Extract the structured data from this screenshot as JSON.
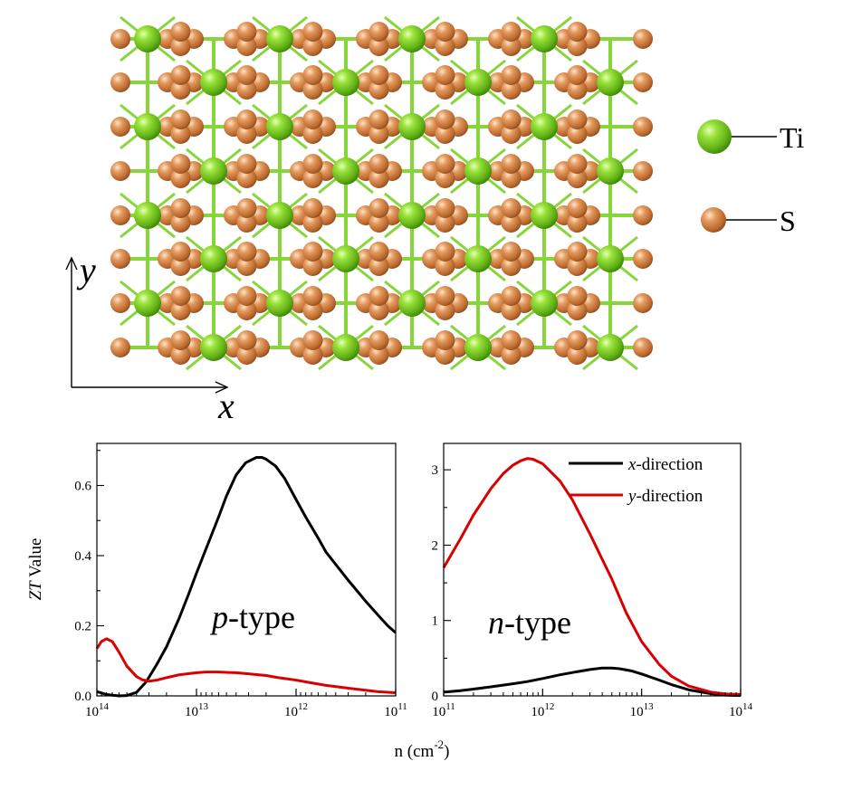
{
  "structure": {
    "species": [
      {
        "symbol": "Ti",
        "color": "#7fd321"
      },
      {
        "symbol": "S",
        "color": "#d9874e"
      }
    ],
    "bond_color": "#86d63a",
    "axes": {
      "horizontal": "x",
      "vertical": "y"
    }
  },
  "chart_data": [
    {
      "type": "line",
      "panel": "p-type",
      "panel_label": {
        "italic": "p",
        "rest": "-type"
      },
      "xscale": "log",
      "xreversed": true,
      "xlim": [
        100000000000000.0,
        100000000000.0
      ],
      "ylim": [
        0,
        0.72
      ],
      "ylabel": {
        "italic": "ZT",
        "rest": " Value"
      },
      "xticks": [
        {
          "value": 100000000000000.0,
          "base": "10",
          "exp": "14"
        },
        {
          "value": 10000000000000.0,
          "base": "10",
          "exp": "13"
        },
        {
          "value": 1000000000000.0,
          "base": "10",
          "exp": "12"
        },
        {
          "value": 100000000000.0,
          "base": "10",
          "exp": "11"
        }
      ],
      "yticks": [
        {
          "value": 0,
          "label": "0.0"
        },
        {
          "value": 0.2,
          "label": "0.2"
        },
        {
          "value": 0.4,
          "label": "0.4"
        },
        {
          "value": 0.6,
          "label": "0.6"
        }
      ],
      "series": [
        {
          "key": "x",
          "color": "#000000",
          "x": [
            100000000000000.0,
            80000000000000.0,
            60000000000000.0,
            50000000000000.0,
            40000000000000.0,
            32000000000000.0,
            25000000000000.0,
            20000000000000.0,
            15000000000000.0,
            12000000000000.0,
            10000000000000.0,
            8000000000000.0,
            6000000000000.0,
            5000000000000.0,
            4000000000000.0,
            3200000000000.0,
            2500000000000.0,
            2200000000000.0,
            2000000000000.0,
            1600000000000.0,
            1300000000000.0,
            1000000000000.0,
            800000000000.0,
            600000000000.0,
            500000000000.0,
            400000000000.0,
            300000000000.0,
            200000000000.0,
            150000000000.0,
            120000000000.0,
            100000000000.0
          ],
          "y": [
            0.012,
            0.004,
            0.0,
            0.001,
            0.01,
            0.04,
            0.09,
            0.14,
            0.22,
            0.29,
            0.35,
            0.42,
            0.51,
            0.57,
            0.63,
            0.665,
            0.68,
            0.68,
            0.675,
            0.655,
            0.62,
            0.56,
            0.51,
            0.45,
            0.41,
            0.375,
            0.33,
            0.27,
            0.23,
            0.2,
            0.18
          ]
        },
        {
          "key": "y",
          "color": "#d80000",
          "x": [
            100000000000000.0,
            90000000000000.0,
            80000000000000.0,
            70000000000000.0,
            60000000000000.0,
            50000000000000.0,
            40000000000000.0,
            35000000000000.0,
            30000000000000.0,
            25000000000000.0,
            20000000000000.0,
            15000000000000.0,
            10000000000000.0,
            8000000000000.0,
            6000000000000.0,
            4000000000000.0,
            3000000000000.0,
            2000000000000.0,
            1500000000000.0,
            1000000000000.0,
            700000000000.0,
            500000000000.0,
            300000000000.0,
            200000000000.0,
            150000000000.0,
            100000000000.0
          ],
          "y": [
            0.135,
            0.155,
            0.163,
            0.155,
            0.125,
            0.085,
            0.055,
            0.046,
            0.042,
            0.045,
            0.052,
            0.06,
            0.066,
            0.068,
            0.068,
            0.066,
            0.063,
            0.058,
            0.052,
            0.045,
            0.037,
            0.03,
            0.022,
            0.016,
            0.012,
            0.009
          ]
        }
      ]
    },
    {
      "type": "line",
      "panel": "n-type",
      "panel_label": {
        "italic": "n",
        "rest": "-type"
      },
      "xscale": "log",
      "xreversed": false,
      "xlim": [
        100000000000.0,
        100000000000000.0
      ],
      "ylim": [
        0,
        3.35
      ],
      "xticks": [
        {
          "value": 100000000000.0,
          "base": "10",
          "exp": "11"
        },
        {
          "value": 1000000000000.0,
          "base": "10",
          "exp": "12"
        },
        {
          "value": 10000000000000.0,
          "base": "10",
          "exp": "13"
        },
        {
          "value": 100000000000000.0,
          "base": "10",
          "exp": "14"
        }
      ],
      "yticks": [
        {
          "value": 0,
          "label": "0"
        },
        {
          "value": 1,
          "label": "1"
        },
        {
          "value": 2,
          "label": "2"
        },
        {
          "value": 3,
          "label": "3"
        }
      ],
      "legend_position": "top-right",
      "series": [
        {
          "key": "x",
          "legend": {
            "italic": "x",
            "rest": "-direction"
          },
          "color": "#000000",
          "x": [
            100000000000.0,
            150000000000.0,
            200000000000.0,
            300000000000.0,
            500000000000.0,
            700000000000.0,
            1000000000000.0,
            1500000000000.0,
            2000000000000.0,
            3000000000000.0,
            4000000000000.0,
            5000000000000.0,
            6000000000000.0,
            8000000000000.0,
            10000000000000.0,
            15000000000000.0,
            20000000000000.0,
            30000000000000.0,
            50000000000000.0,
            70000000000000.0,
            100000000000000.0
          ],
          "y": [
            0.05,
            0.07,
            0.09,
            0.12,
            0.16,
            0.19,
            0.23,
            0.28,
            0.31,
            0.35,
            0.37,
            0.37,
            0.36,
            0.33,
            0.29,
            0.21,
            0.15,
            0.08,
            0.03,
            0.01,
            0.005
          ]
        },
        {
          "key": "y",
          "legend": {
            "italic": "y",
            "rest": "-direction"
          },
          "color": "#d80000",
          "x": [
            100000000000.0,
            150000000000.0,
            200000000000.0,
            300000000000.0,
            400000000000.0,
            500000000000.0,
            600000000000.0,
            700000000000.0,
            800000000000.0,
            1000000000000.0,
            1500000000000.0,
            2000000000000.0,
            3000000000000.0,
            5000000000000.0,
            7000000000000.0,
            10000000000000.0,
            15000000000000.0,
            20000000000000.0,
            30000000000000.0,
            50000000000000.0,
            70000000000000.0,
            100000000000000.0
          ],
          "y": [
            1.7,
            2.1,
            2.4,
            2.75,
            2.95,
            3.06,
            3.12,
            3.15,
            3.14,
            3.08,
            2.85,
            2.6,
            2.15,
            1.55,
            1.1,
            0.72,
            0.42,
            0.26,
            0.13,
            0.05,
            0.025,
            0.02
          ]
        }
      ]
    }
  ],
  "shared_xlabel": {
    "main": "n (cm",
    "sup": "-2",
    "close": ")"
  }
}
